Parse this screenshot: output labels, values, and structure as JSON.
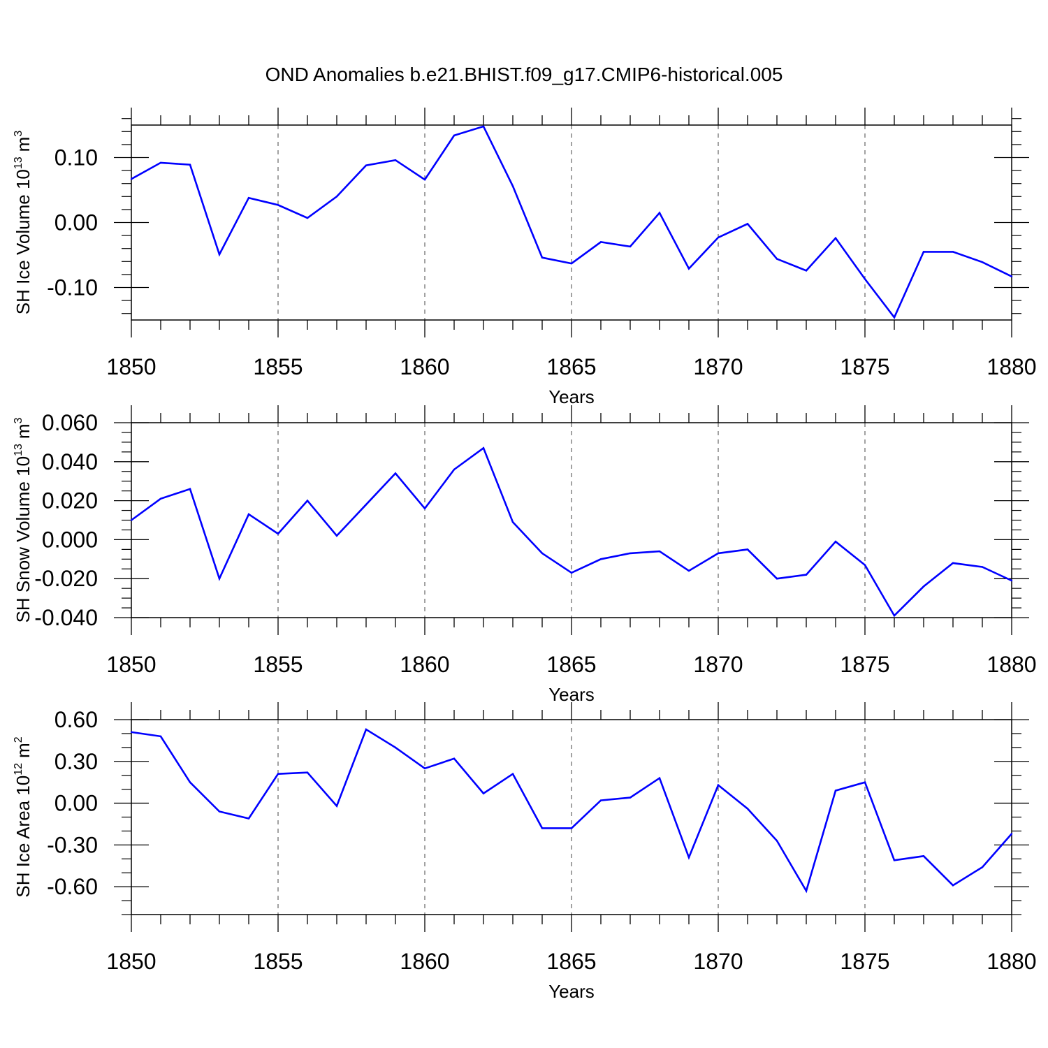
{
  "figure": {
    "title": "OND Anomalies b.e21.BHIST.f09_g17.CMIP6-historical.005",
    "line_color": "#0000ff"
  },
  "chart_data": [
    {
      "type": "line",
      "ylabel_main": "SH Ice Volume 10",
      "ylabel_exp": "13",
      "ylabel_unit": "m",
      "ylabel_unit_exp": "3",
      "xlabel": "Years",
      "xlim": [
        1850,
        1880
      ],
      "ylim": [
        -0.15,
        0.15
      ],
      "x_ticks": [
        1850,
        1855,
        1860,
        1865,
        1870,
        1875,
        1880
      ],
      "x_tick_labels": [
        "1850",
        "1855",
        "1860",
        "1865",
        "1870",
        "1875",
        "1880"
      ],
      "y_ticks": [
        -0.1,
        0.0,
        0.1
      ],
      "y_tick_labels": [
        "-0.10",
        "0.00",
        "0.10"
      ],
      "y_minor_step": 0.02,
      "grid": "vertical dashed at major x ticks",
      "series": [
        {
          "x": [
            1850,
            1851,
            1852,
            1853,
            1854,
            1855,
            1856,
            1857,
            1858,
            1859,
            1860,
            1861,
            1862,
            1863,
            1864,
            1865,
            1866,
            1867,
            1868,
            1869,
            1870,
            1871,
            1872,
            1873,
            1874,
            1875,
            1876,
            1877,
            1878,
            1879,
            1880
          ],
          "values": [
            0.067,
            0.092,
            0.089,
            -0.049,
            0.038,
            0.027,
            0.007,
            0.04,
            0.088,
            0.096,
            0.066,
            0.134,
            0.148,
            0.056,
            -0.054,
            -0.063,
            -0.03,
            -0.037,
            0.015,
            -0.071,
            -0.023,
            -0.002,
            -0.056,
            -0.074,
            -0.024,
            -0.087,
            -0.146,
            -0.045,
            -0.045,
            -0.061,
            -0.083
          ]
        }
      ]
    },
    {
      "type": "line",
      "ylabel_main": "SH Snow Volume 10",
      "ylabel_exp": "13",
      "ylabel_unit": "m",
      "ylabel_unit_exp": "3",
      "xlabel": "Years",
      "xlim": [
        1850,
        1880
      ],
      "ylim": [
        -0.04,
        0.06
      ],
      "x_ticks": [
        1850,
        1855,
        1860,
        1865,
        1870,
        1875,
        1880
      ],
      "x_tick_labels": [
        "1850",
        "1855",
        "1860",
        "1865",
        "1870",
        "1875",
        "1880"
      ],
      "y_ticks": [
        -0.04,
        -0.02,
        0.0,
        0.02,
        0.04,
        0.06
      ],
      "y_tick_labels": [
        "-0.040",
        "-0.020",
        "0.000",
        "0.020",
        "0.040",
        "0.060"
      ],
      "y_minor_step": 0.005,
      "grid": "vertical dashed at major x ticks",
      "series": [
        {
          "x": [
            1850,
            1851,
            1852,
            1853,
            1854,
            1855,
            1856,
            1857,
            1858,
            1859,
            1860,
            1861,
            1862,
            1863,
            1864,
            1865,
            1866,
            1867,
            1868,
            1869,
            1870,
            1871,
            1872,
            1873,
            1874,
            1875,
            1876,
            1877,
            1878,
            1879,
            1880
          ],
          "values": [
            0.01,
            0.021,
            0.026,
            -0.02,
            0.013,
            0.003,
            0.02,
            0.002,
            0.018,
            0.034,
            0.016,
            0.036,
            0.047,
            0.009,
            -0.007,
            -0.017,
            -0.01,
            -0.007,
            -0.006,
            -0.016,
            -0.007,
            -0.005,
            -0.02,
            -0.018,
            -0.001,
            -0.013,
            -0.039,
            -0.024,
            -0.012,
            -0.014,
            -0.021
          ]
        }
      ]
    },
    {
      "type": "line",
      "ylabel_main": "SH Ice Area 10",
      "ylabel_exp": "12",
      "ylabel_unit": "m",
      "ylabel_unit_exp": "2",
      "xlabel": "Years",
      "xlim": [
        1850,
        1880
      ],
      "ylim": [
        -0.8,
        0.6
      ],
      "x_ticks": [
        1850,
        1855,
        1860,
        1865,
        1870,
        1875,
        1880
      ],
      "x_tick_labels": [
        "1850",
        "1855",
        "1860",
        "1865",
        "1870",
        "1875",
        "1880"
      ],
      "y_ticks": [
        -0.6,
        -0.3,
        0.0,
        0.3,
        0.6
      ],
      "y_tick_labels": [
        "-0.60",
        "-0.30",
        "0.00",
        "0.30",
        "0.60"
      ],
      "y_minor_step": 0.1,
      "grid": "vertical dashed at major x ticks",
      "series": [
        {
          "x": [
            1850,
            1851,
            1852,
            1853,
            1854,
            1855,
            1856,
            1857,
            1858,
            1859,
            1860,
            1861,
            1862,
            1863,
            1864,
            1865,
            1866,
            1867,
            1868,
            1869,
            1870,
            1871,
            1872,
            1873,
            1874,
            1875,
            1876,
            1877,
            1878,
            1879,
            1880
          ],
          "values": [
            0.51,
            0.48,
            0.15,
            -0.06,
            -0.11,
            0.21,
            0.22,
            -0.02,
            0.53,
            0.4,
            0.25,
            0.32,
            0.07,
            0.21,
            -0.18,
            -0.18,
            0.02,
            0.04,
            0.18,
            -0.39,
            0.13,
            -0.04,
            -0.27,
            -0.63,
            0.09,
            0.15,
            -0.41,
            -0.38,
            -0.59,
            -0.46,
            -0.22
          ]
        }
      ]
    }
  ]
}
